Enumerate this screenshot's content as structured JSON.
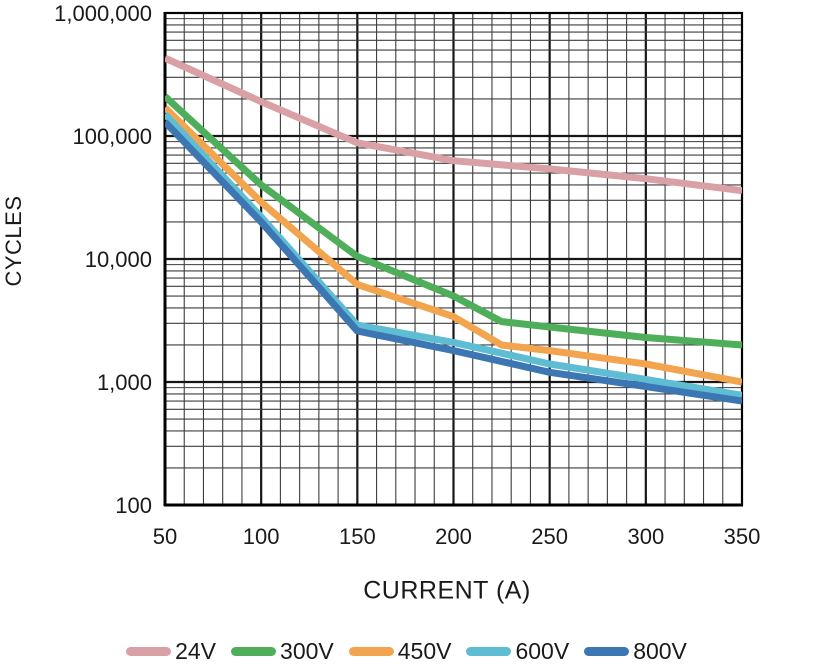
{
  "chart_data": {
    "type": "line",
    "title": "",
    "xlabel": "CURRENT (A)",
    "ylabel": "CYCLES",
    "grid": {
      "major": true,
      "minor": true
    },
    "legend_position": "bottom",
    "x_axis": {
      "scale": "linear",
      "min": 50,
      "max": 350,
      "minor_step": 10,
      "major_step": 50,
      "ticks": [
        {
          "value": 50,
          "label": "50"
        },
        {
          "value": 100,
          "label": "100"
        },
        {
          "value": 150,
          "label": "150"
        },
        {
          "value": 200,
          "label": "200"
        },
        {
          "value": 250,
          "label": "250"
        },
        {
          "value": 300,
          "label": "300"
        },
        {
          "value": 350,
          "label": "350"
        }
      ]
    },
    "y_axis": {
      "scale": "log",
      "min": 100,
      "max": 1000000,
      "ticks": [
        {
          "value": 1000000,
          "label": "1,000,000"
        },
        {
          "value": 100000,
          "label": "100,000"
        },
        {
          "value": 10000,
          "label": "10,000"
        },
        {
          "value": 1000,
          "label": "1,000"
        },
        {
          "value": 100,
          "label": "100"
        }
      ]
    },
    "series": [
      {
        "name": "24V",
        "color": "#d9a0a6",
        "x": [
          50,
          100,
          150,
          200,
          250,
          300,
          350
        ],
        "y": [
          430000,
          190000,
          88000,
          63000,
          54000,
          45000,
          36000
        ]
      },
      {
        "name": "300V",
        "color": "#4fae5a",
        "x": [
          50,
          100,
          150,
          200,
          225,
          250,
          300,
          350
        ],
        "y": [
          210000,
          40000,
          10500,
          5000,
          3100,
          2800,
          2300,
          2000
        ]
      },
      {
        "name": "450V",
        "color": "#f2a44f",
        "x": [
          50,
          100,
          150,
          200,
          225,
          250,
          300,
          350
        ],
        "y": [
          170000,
          29000,
          6200,
          3400,
          2000,
          1800,
          1400,
          1000
        ]
      },
      {
        "name": "600V",
        "color": "#5fbdd3",
        "x": [
          50,
          100,
          150,
          200,
          250,
          300,
          350
        ],
        "y": [
          150000,
          22000,
          2900,
          2100,
          1400,
          1050,
          780
        ]
      },
      {
        "name": "800V",
        "color": "#3c77b3",
        "x": [
          50,
          100,
          150,
          200,
          250,
          300,
          350
        ],
        "y": [
          130000,
          20000,
          2600,
          1800,
          1200,
          920,
          700
        ]
      }
    ],
    "style": {
      "grid_major_color": "#161616",
      "grid_minor_color": "#3d3d3d",
      "frame_color": "#000000",
      "text_color": "#1a1a1a",
      "line_width": 7
    }
  }
}
